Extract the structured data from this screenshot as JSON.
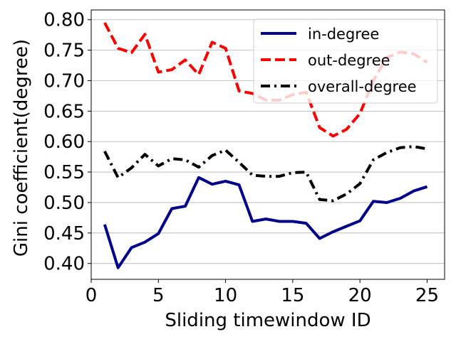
{
  "chart_data": {
    "type": "line",
    "xlabel": "Sliding timewindow ID",
    "ylabel": "Gini coefficient(degree)",
    "xlim": [
      0,
      26.3
    ],
    "ylim": [
      0.374,
      0.816
    ],
    "xticks": [
      0,
      5,
      10,
      15,
      20,
      25
    ],
    "yticks": [
      0.4,
      0.45,
      0.5,
      0.55,
      0.6,
      0.65,
      0.7,
      0.75,
      0.8
    ],
    "ytick_labels": [
      "0.40",
      "0.45",
      "0.50",
      "0.55",
      "0.60",
      "0.65",
      "0.70",
      "0.75",
      "0.80"
    ],
    "grid": "horizontal",
    "legend_position": "top-right",
    "x": [
      1,
      2,
      3,
      4,
      5,
      6,
      7,
      8,
      9,
      10,
      11,
      12,
      13,
      14,
      15,
      16,
      17,
      18,
      19,
      20,
      21,
      22,
      23,
      24,
      25
    ],
    "series": [
      {
        "name": "in-degree",
        "color": "#00008b",
        "style": "solid",
        "values": [
          0.464,
          0.393,
          0.426,
          0.435,
          0.449,
          0.49,
          0.494,
          0.541,
          0.53,
          0.535,
          0.529,
          0.469,
          0.473,
          0.469,
          0.469,
          0.466,
          0.441,
          0.452,
          0.461,
          0.47,
          0.502,
          0.5,
          0.507,
          0.519,
          0.526
        ]
      },
      {
        "name": "out-degree",
        "color": "#ff0000",
        "style": "dashed",
        "values": [
          0.795,
          0.753,
          0.746,
          0.776,
          0.714,
          0.718,
          0.734,
          0.71,
          0.763,
          0.753,
          0.683,
          0.679,
          0.668,
          0.668,
          0.677,
          0.681,
          0.623,
          0.609,
          0.62,
          0.646,
          0.7,
          0.738,
          0.747,
          0.744,
          0.73
        ]
      },
      {
        "name": "overall-degree",
        "color": "#000000",
        "style": "dashdot",
        "values": [
          0.584,
          0.541,
          0.557,
          0.579,
          0.56,
          0.572,
          0.57,
          0.558,
          0.577,
          0.586,
          0.566,
          0.545,
          0.543,
          0.543,
          0.549,
          0.55,
          0.505,
          0.503,
          0.514,
          0.531,
          0.57,
          0.582,
          0.59,
          0.592,
          0.588
        ]
      }
    ]
  }
}
